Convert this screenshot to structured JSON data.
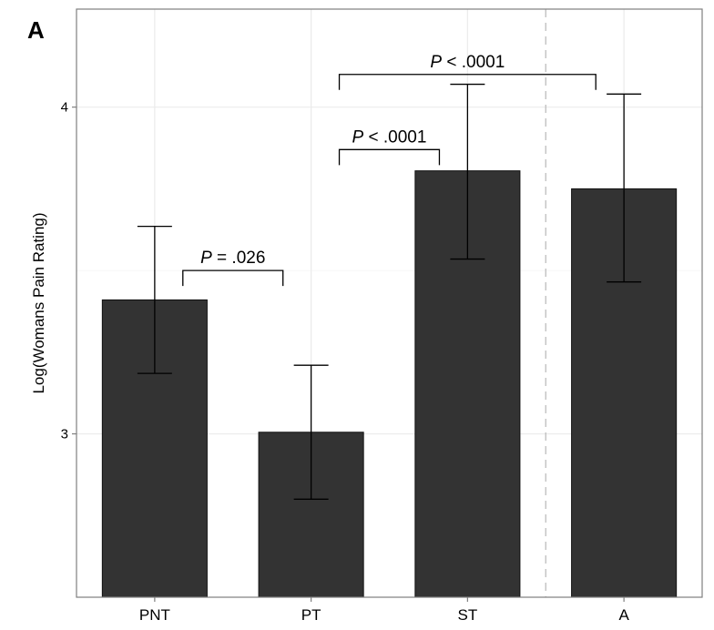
{
  "panel_label": "A",
  "chart_data": {
    "type": "bar",
    "title": "",
    "xlabel": "",
    "ylabel": "Log(Womans Pain Rating)",
    "categories": [
      "PNT",
      "PT",
      "ST",
      "A"
    ],
    "values": [
      3.41,
      3.005,
      3.805,
      3.75
    ],
    "error_low": [
      3.185,
      2.8,
      3.535,
      3.465
    ],
    "error_high": [
      3.635,
      3.21,
      4.07,
      4.04
    ],
    "ylim": [
      2.5,
      4.3
    ],
    "yticks": [
      3,
      4
    ],
    "ytick_labels": [
      "3",
      "4"
    ],
    "grid": true,
    "separator_after_category": "ST",
    "bar_color": "#333333",
    "annotations": [
      {
        "p_label": "P",
        "text": " = .026",
        "from": "PNT",
        "to": "PT",
        "y": 3.5
      },
      {
        "p_label": "P",
        "text": " < .0001",
        "from": "PT",
        "to": "ST",
        "y": 3.87
      },
      {
        "p_label": "P",
        "text": " < .0001",
        "from": "PT",
        "to": "A",
        "y": 4.1
      }
    ]
  }
}
